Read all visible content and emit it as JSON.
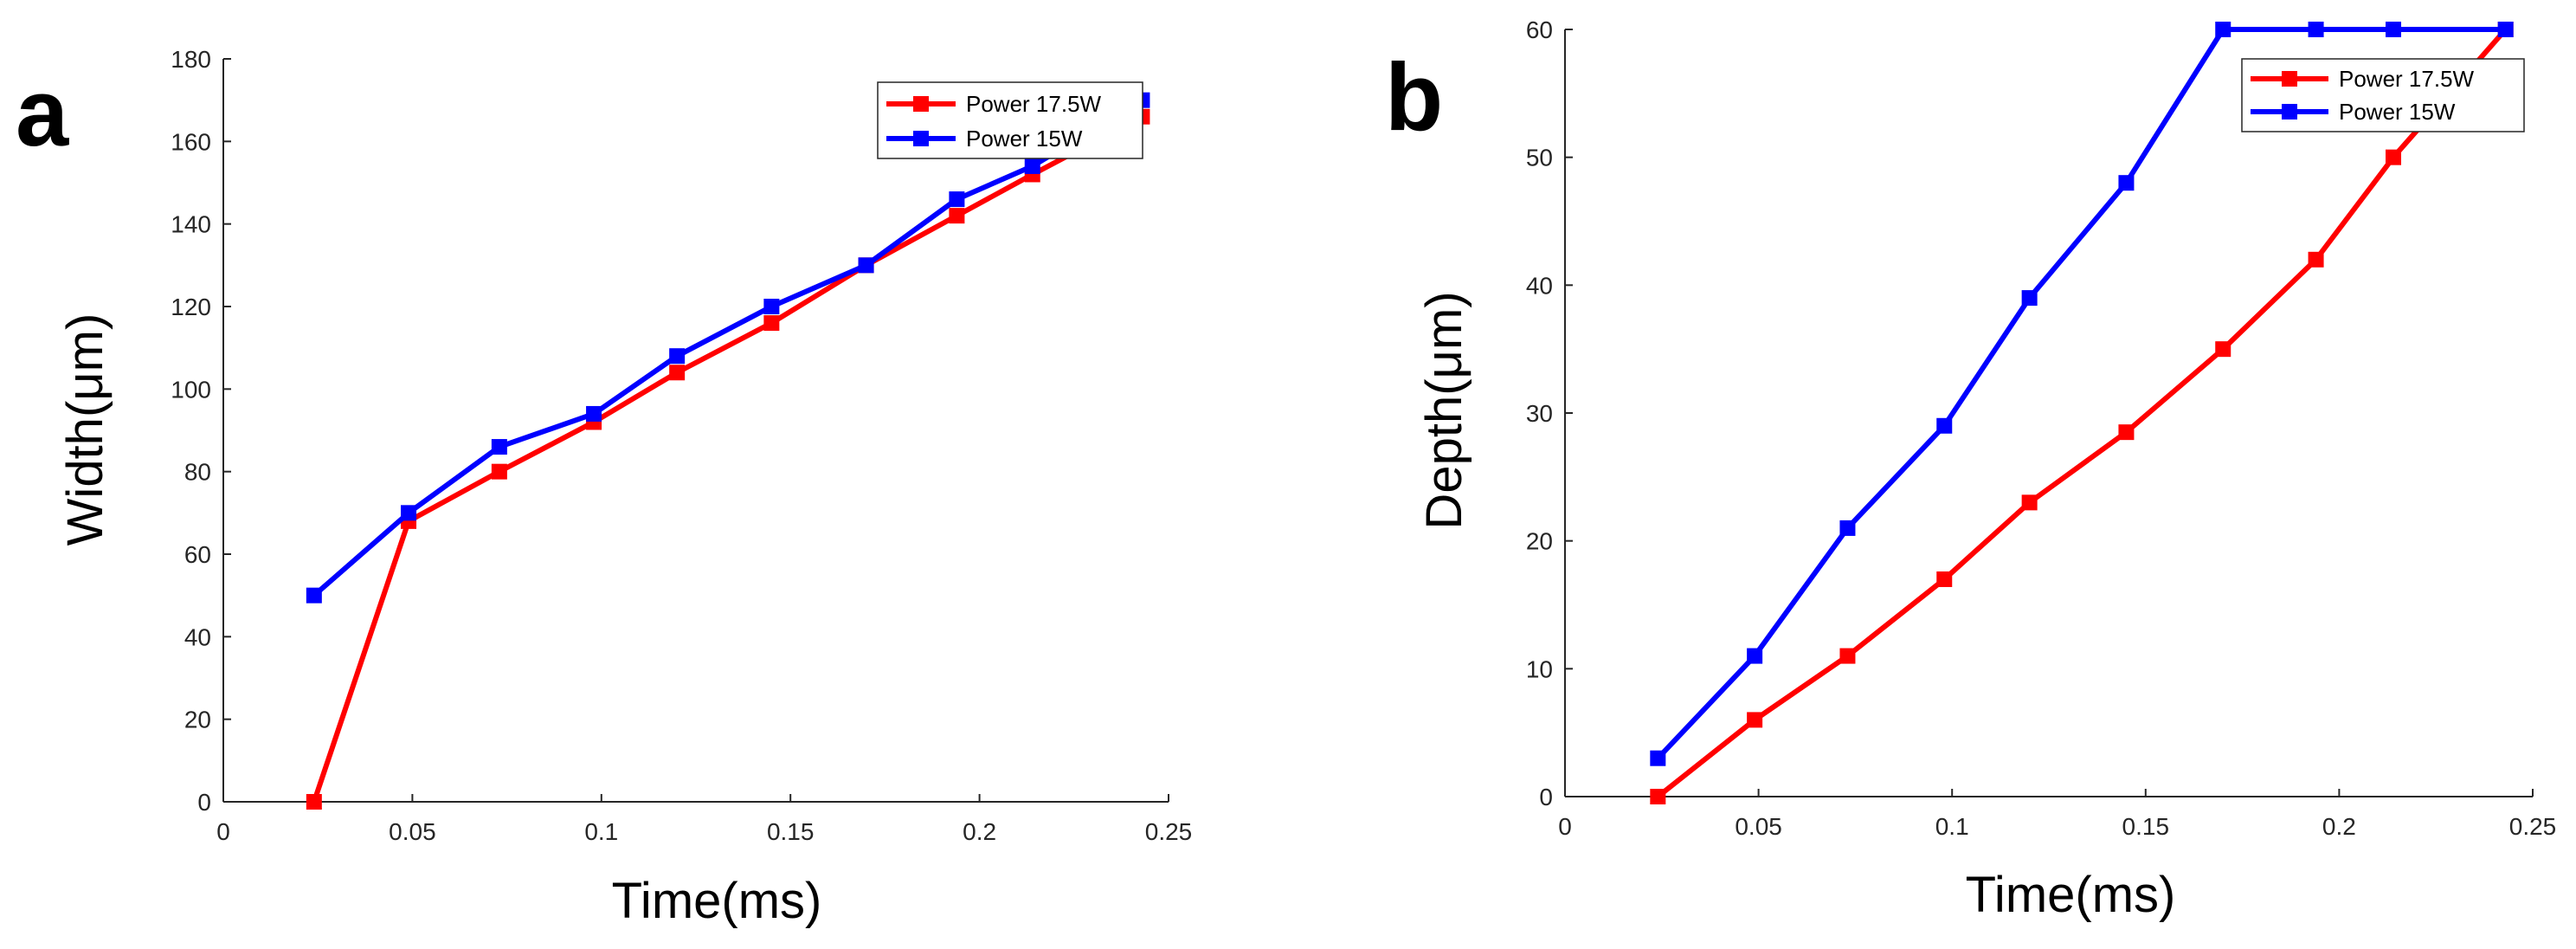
{
  "chart_data": [
    {
      "type": "line",
      "panel_label": "a",
      "xlabel": "Time(ms)",
      "ylabel": "Width(μm)",
      "xlim": [
        0,
        0.25
      ],
      "ylim": [
        0,
        180
      ],
      "x_ticks": [
        "0",
        "0.05",
        "0.1",
        "0.15",
        "0.2",
        "0.25"
      ],
      "y_ticks": [
        "0",
        "20",
        "40",
        "60",
        "80",
        "100",
        "120",
        "140",
        "160",
        "180"
      ],
      "grid": false,
      "legend_position": "top-right",
      "series": [
        {
          "name": "Power 17.5W",
          "color": "#ff0000",
          "x": [
            0.024,
            0.049,
            0.073,
            0.098,
            0.12,
            0.145,
            0.17,
            0.194,
            0.214,
            0.243
          ],
          "y": [
            0,
            68,
            80,
            92,
            104,
            116,
            130,
            142,
            152,
            166
          ]
        },
        {
          "name": "Power 15W",
          "color": "#0000ff",
          "x": [
            0.024,
            0.049,
            0.073,
            0.098,
            0.12,
            0.145,
            0.17,
            0.194,
            0.214,
            0.243
          ],
          "y": [
            50,
            70,
            86,
            94,
            108,
            120,
            130,
            146,
            154,
            170
          ]
        }
      ]
    },
    {
      "type": "line",
      "panel_label": "b",
      "xlabel": "Time(ms)",
      "ylabel": "Depth(μm)",
      "xlim": [
        0,
        0.25
      ],
      "ylim": [
        0,
        60
      ],
      "x_ticks": [
        "0",
        "0.05",
        "0.1",
        "0.15",
        "0.2",
        "0.25"
      ],
      "y_ticks": [
        "0",
        "10",
        "20",
        "30",
        "40",
        "50",
        "60"
      ],
      "grid": false,
      "legend_position": "top-right",
      "series": [
        {
          "name": "Power 17.5W",
          "color": "#ff0000",
          "x": [
            0.024,
            0.049,
            0.073,
            0.098,
            0.12,
            0.145,
            0.17,
            0.194,
            0.214,
            0.243
          ],
          "y": [
            0,
            6,
            11,
            17,
            23,
            28.5,
            35,
            42,
            50,
            60
          ]
        },
        {
          "name": "Power 15W",
          "color": "#0000ff",
          "x": [
            0.024,
            0.049,
            0.073,
            0.098,
            0.12,
            0.145,
            0.17,
            0.194,
            0.214,
            0.243
          ],
          "y": [
            3,
            11,
            21,
            29,
            39,
            48,
            60,
            60,
            60,
            60
          ]
        }
      ]
    }
  ]
}
